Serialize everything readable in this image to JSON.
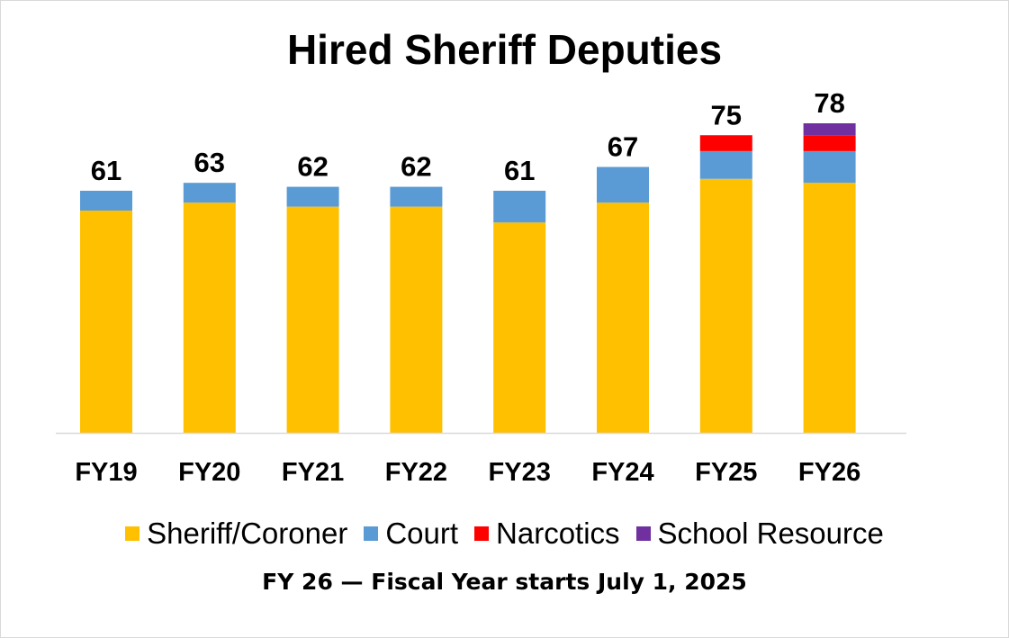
{
  "chart_data": {
    "type": "bar",
    "stacked": true,
    "title": "Hired Sheriff Deputies",
    "categories": [
      "FY19",
      "FY20",
      "FY21",
      "FY22",
      "FY23",
      "FY24",
      "FY25",
      "FY26"
    ],
    "series": [
      {
        "name": "Sheriff/Coroner",
        "color": "#FFC000",
        "values": [
          56,
          58,
          57,
          57,
          53,
          58,
          64,
          63
        ]
      },
      {
        "name": "Court",
        "color": "#5B9BD5",
        "values": [
          5,
          5,
          5,
          5,
          8,
          9,
          7,
          8
        ]
      },
      {
        "name": "Narcotics",
        "color": "#FF0000",
        "values": [
          0,
          0,
          0,
          0,
          0,
          0,
          4,
          4
        ]
      },
      {
        "name": "School Resource",
        "color": "#7030A0",
        "values": [
          0,
          0,
          0,
          0,
          0,
          0,
          0,
          3
        ]
      }
    ],
    "totals": [
      "61",
      "63",
      "62",
      "62",
      "61",
      "67",
      "75",
      "78"
    ],
    "xlabel": "",
    "ylabel": "",
    "ylim": [
      0,
      80
    ],
    "grid": false,
    "legend": "bottom",
    "footnote": "FY 26 — Fiscal Year starts July 1, 2025"
  }
}
